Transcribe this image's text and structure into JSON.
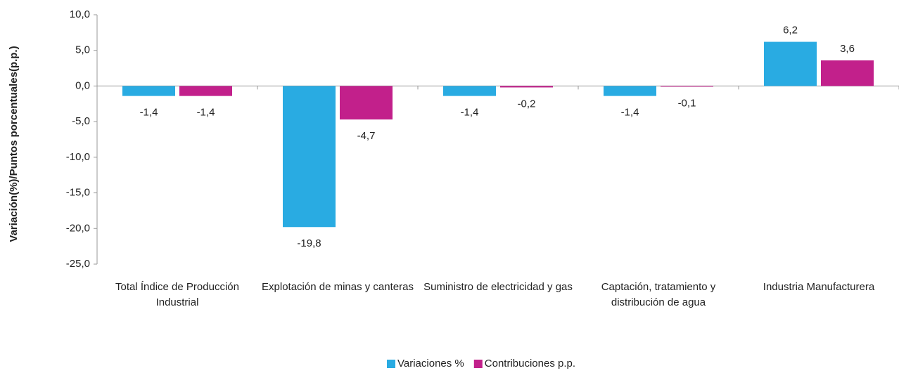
{
  "chart_data": {
    "type": "bar",
    "y_label": "Variación(%)/Puntos  porcentuales(p.p.)",
    "categories": [
      "Total Índice de Producción Industrial",
      "Explotación de minas y canteras",
      "Suministro de electricidad y gas",
      "Captación, tratamiento y distribución de agua",
      "Industria Manufacturera"
    ],
    "series": [
      {
        "name": "Variaciones %",
        "color": "#29abe2",
        "values": [
          -1.4,
          -19.8,
          -1.4,
          -1.4,
          6.2
        ],
        "value_labels": [
          "-1,4",
          "-19,8",
          "-1,4",
          "-1,4",
          "6,2"
        ]
      },
      {
        "name": "Contribuciones p.p.",
        "color": "#c2208b",
        "values": [
          -1.4,
          -4.7,
          -0.2,
          -0.1,
          3.6
        ],
        "value_labels": [
          "-1,4",
          "-4,7",
          "-0,2",
          "-0,1",
          "3,6"
        ]
      }
    ],
    "ylim": [
      -25,
      10
    ],
    "yticks": [
      {
        "value": -25,
        "label": "-25,0"
      },
      {
        "value": -20,
        "label": "-20,0"
      },
      {
        "value": -15,
        "label": "-15,0"
      },
      {
        "value": -10,
        "label": "-10,0"
      },
      {
        "value": -5,
        "label": "-5,0"
      },
      {
        "value": 0,
        "label": "0,0"
      },
      {
        "value": 5,
        "label": "5,0"
      },
      {
        "value": 10,
        "label": "10,0"
      }
    ],
    "legend": "bottom"
  }
}
